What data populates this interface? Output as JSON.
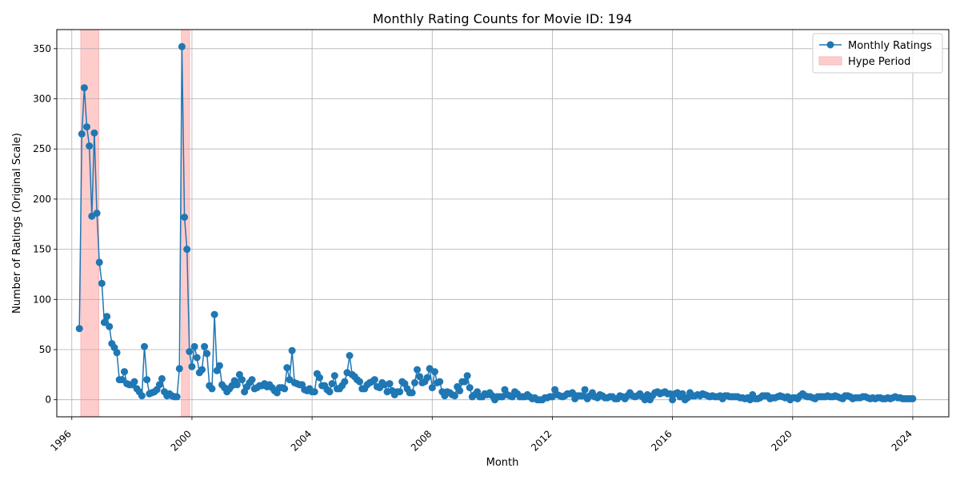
{
  "chart_data": {
    "type": "line",
    "title": "Monthly Rating Counts for Movie ID: 194",
    "xlabel": "Month",
    "ylabel": "Number of Ratings (Original Scale)",
    "xlim": [
      1995.5,
      2025.2
    ],
    "ylim": [
      -17,
      369
    ],
    "grid": true,
    "legend_position": "top-right",
    "xticks": [
      1996,
      2000,
      2004,
      2008,
      2012,
      2016,
      2020,
      2024
    ],
    "xtick_labels": [
      "1996",
      "2000",
      "2004",
      "2008",
      "2012",
      "2016",
      "2020",
      "2024"
    ],
    "yticks": [
      0,
      50,
      100,
      150,
      200,
      250,
      300,
      350
    ],
    "ytick_labels": [
      "0",
      "50",
      "100",
      "150",
      "200",
      "250",
      "300",
      "350"
    ],
    "series": [
      {
        "name": "Monthly Ratings",
        "color": "#1f77b4",
        "start": [
          1996,
          4
        ],
        "values": [
          71,
          265,
          311,
          272,
          253,
          183,
          266,
          186,
          137,
          116,
          77,
          83,
          73,
          56,
          52,
          47,
          20,
          20,
          28,
          16,
          15,
          15,
          18,
          11,
          8,
          4,
          53,
          20,
          6,
          7,
          8,
          10,
          15,
          21,
          8,
          4,
          6,
          4,
          3,
          3,
          31,
          352,
          182,
          150,
          48,
          33,
          53,
          42,
          27,
          30,
          53,
          46,
          14,
          11,
          85,
          29,
          34,
          15,
          12,
          8,
          11,
          14,
          19,
          15,
          25,
          20,
          8,
          13,
          17,
          20,
          11,
          12,
          14,
          14,
          16,
          13,
          15,
          12,
          9,
          7,
          12,
          12,
          11,
          32,
          20,
          49,
          17,
          16,
          15,
          15,
          10,
          9,
          11,
          8,
          8,
          26,
          22,
          14,
          14,
          10,
          8,
          16,
          24,
          11,
          11,
          14,
          18,
          27,
          44,
          25,
          23,
          20,
          18,
          11,
          11,
          15,
          17,
          18,
          20,
          13,
          12,
          17,
          15,
          8,
          16,
          9,
          5,
          8,
          8,
          18,
          16,
          11,
          7,
          7,
          17,
          30,
          23,
          17,
          18,
          22,
          31,
          12,
          28,
          17,
          18,
          8,
          4,
          8,
          7,
          5,
          4,
          13,
          9,
          18,
          18,
          24,
          12,
          3,
          5,
          8,
          3,
          3,
          6,
          5,
          7,
          4,
          0,
          3,
          3,
          3,
          10,
          5,
          4,
          3,
          8,
          6,
          3,
          3,
          3,
          5,
          3,
          1,
          2,
          0,
          0,
          0,
          2,
          2,
          3,
          3,
          10,
          5,
          4,
          3,
          4,
          6,
          6,
          7,
          1,
          4,
          4,
          4,
          10,
          1,
          4,
          7,
          3,
          2,
          5,
          4,
          2,
          2,
          3,
          3,
          1,
          1,
          4,
          3,
          1,
          4,
          7,
          4,
          3,
          4,
          6,
          3,
          0,
          5,
          0,
          4,
          7,
          8,
          6,
          7,
          8,
          6,
          6,
          0,
          6,
          7,
          3,
          6,
          0,
          2,
          7,
          4,
          4,
          5,
          4,
          6,
          5,
          4,
          3,
          4,
          3,
          3,
          4,
          1,
          4,
          4,
          3,
          3,
          3,
          3,
          2,
          2,
          1,
          2,
          0,
          5,
          1,
          1,
          2,
          4,
          4,
          4,
          1,
          2,
          2,
          3,
          4,
          3,
          2,
          3,
          0,
          2,
          2,
          1,
          4,
          6,
          4,
          3,
          3,
          2,
          1,
          3,
          3,
          3,
          3,
          4,
          3,
          3,
          4,
          3,
          2,
          1,
          4,
          4,
          3,
          1,
          2,
          2,
          2,
          3,
          3,
          2,
          1,
          2,
          1,
          2,
          2,
          1,
          1,
          2,
          1,
          2,
          3,
          2,
          2,
          1,
          1,
          1,
          1,
          1
        ]
      }
    ],
    "hype_periods": [
      {
        "name": "Hype Period",
        "color": "#ffcccc",
        "start": 1996.3,
        "end": 1996.9
      },
      {
        "name": "Hype Period",
        "color": "#ffcccc",
        "start": 1999.65,
        "end": 1999.92
      }
    ],
    "legend": [
      {
        "label": "Monthly Ratings",
        "kind": "line-marker",
        "color": "#1f77b4"
      },
      {
        "label": "Hype Period",
        "kind": "patch",
        "color": "#ffcccc"
      }
    ]
  }
}
